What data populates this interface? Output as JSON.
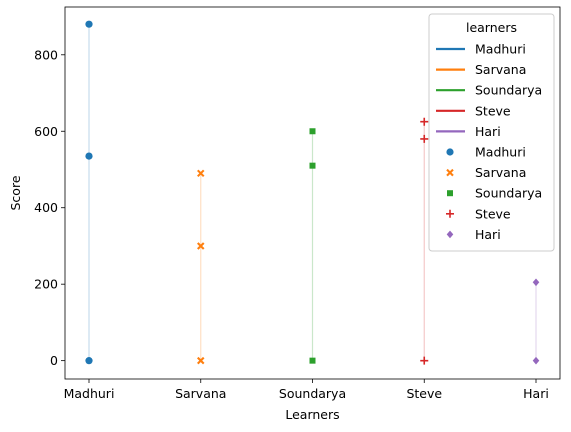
{
  "chart_data": {
    "type": "scatter",
    "xlabel": "Learners",
    "ylabel": "Score",
    "categories": [
      "Madhuri",
      "Sarvana",
      "Soundarya",
      "Steve",
      "Hari"
    ],
    "ylim": [
      -48,
      925
    ],
    "yticks": [
      0,
      200,
      400,
      600,
      800
    ],
    "grid": false,
    "legend": {
      "title": "learners",
      "placement": "top-right"
    },
    "series": [
      {
        "name": "Madhuri",
        "color": "#1f77b4",
        "marker": "circle",
        "points": [
          0,
          535,
          880
        ]
      },
      {
        "name": "Sarvana",
        "color": "#ff7f0e",
        "marker": "x",
        "points": [
          0,
          300,
          490
        ]
      },
      {
        "name": "Soundarya",
        "color": "#2ca02c",
        "marker": "square",
        "points": [
          0,
          510,
          600
        ]
      },
      {
        "name": "Steve",
        "color": "#d62728",
        "marker": "plus",
        "points": [
          0,
          580,
          625
        ]
      },
      {
        "name": "Hari",
        "color": "#9467bd",
        "marker": "diamond",
        "points": [
          0,
          205
        ]
      }
    ]
  }
}
